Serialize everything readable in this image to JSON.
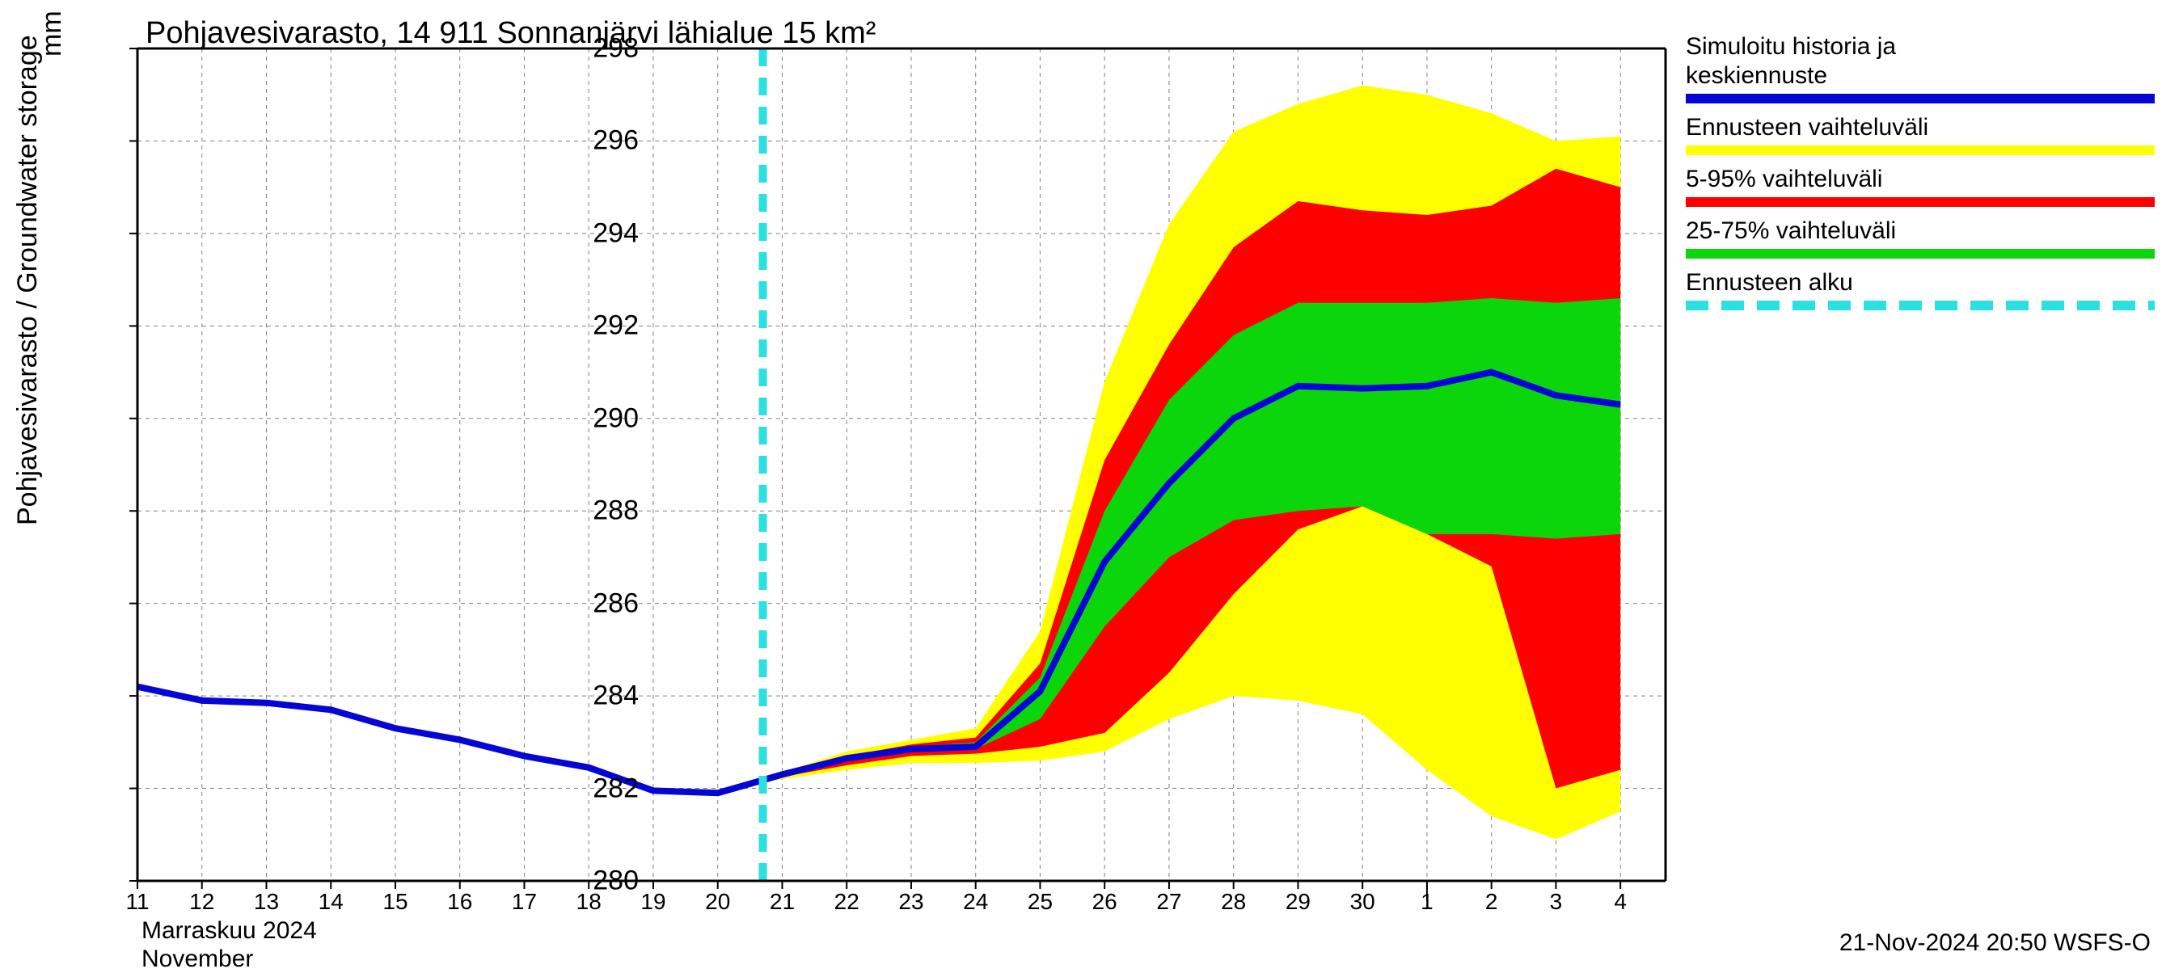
{
  "chart": {
    "title": "Pohjavesivarasto, 14 911 Sonnanjärvi lähialue 15 km²",
    "y_label": "Pohjavesivarasto / Groundwater storage",
    "y_unit": "mm",
    "x_month_fi": "Marraskuu 2024",
    "x_month_en": "November",
    "footer": "21-Nov-2024 20:50 WSFS-O",
    "ylim": [
      280,
      298
    ],
    "ytick_step": 2,
    "yticks": [
      280,
      282,
      284,
      286,
      288,
      290,
      292,
      294,
      296,
      298
    ],
    "x_dates": [
      "11",
      "12",
      "13",
      "14",
      "15",
      "16",
      "17",
      "18",
      "19",
      "20",
      "21",
      "22",
      "23",
      "24",
      "25",
      "26",
      "27",
      "28",
      "29",
      "30",
      "1",
      "2",
      "3",
      "4"
    ],
    "x_positions": [
      0,
      1,
      2,
      3,
      4,
      5,
      6,
      7,
      8,
      9,
      10,
      11,
      12,
      13,
      14,
      15,
      16,
      17,
      18,
      19,
      20,
      21,
      22,
      23
    ],
    "x_count": 24,
    "forecast_start_x": 9.7,
    "month_boundary_x": 20,
    "blue_line": [
      284.2,
      283.9,
      283.85,
      283.7,
      283.3,
      283.05,
      282.7,
      282.45,
      281.95,
      281.9,
      282.3,
      282.65,
      282.85,
      282.9,
      284.1,
      286.9,
      288.6,
      290.0,
      290.7,
      290.65,
      290.7,
      291.0,
      290.5,
      290.3
    ],
    "yellow_upper": [
      284.2,
      283.9,
      283.85,
      283.7,
      283.3,
      283.05,
      282.7,
      282.45,
      281.95,
      281.9,
      282.35,
      282.8,
      283.05,
      283.3,
      285.4,
      290.8,
      294.2,
      296.2,
      296.8,
      297.2,
      297.0,
      296.6,
      296.0,
      296.1
    ],
    "yellow_lower": [
      284.2,
      283.9,
      283.85,
      283.7,
      283.3,
      283.05,
      282.7,
      282.45,
      281.95,
      281.9,
      282.2,
      282.4,
      282.55,
      282.55,
      282.6,
      282.8,
      283.5,
      284.0,
      283.9,
      283.6,
      282.4,
      281.4,
      280.9,
      281.5
    ],
    "red_upper": [
      284.2,
      283.9,
      283.85,
      283.7,
      283.3,
      283.05,
      282.7,
      282.45,
      281.95,
      281.9,
      282.3,
      282.7,
      282.95,
      283.1,
      284.7,
      289.1,
      291.6,
      293.7,
      294.7,
      294.5,
      294.4,
      294.6,
      295.4,
      295.0
    ],
    "red_lower": [
      284.2,
      283.9,
      283.85,
      283.7,
      283.3,
      283.05,
      282.7,
      282.45,
      281.95,
      281.9,
      282.25,
      282.5,
      282.7,
      282.75,
      282.9,
      283.2,
      284.5,
      286.2,
      287.6,
      288.1,
      287.5,
      286.8,
      282.0,
      282.4
    ],
    "green_upper": [
      284.2,
      283.9,
      283.85,
      283.7,
      283.3,
      283.05,
      282.7,
      282.45,
      281.95,
      281.9,
      282.3,
      282.68,
      282.9,
      283.0,
      284.4,
      288.0,
      290.4,
      291.8,
      292.5,
      292.5,
      292.5,
      292.6,
      292.5,
      292.6
    ],
    "green_lower": [
      284.2,
      283.9,
      283.85,
      283.7,
      283.3,
      283.05,
      282.7,
      282.45,
      281.95,
      281.9,
      282.28,
      282.58,
      282.8,
      282.85,
      283.5,
      285.5,
      287.0,
      287.8,
      288.0,
      288.1,
      287.5,
      287.5,
      287.4,
      287.5
    ],
    "colors": {
      "blue": "#0505d6",
      "yellow": "#ffff00",
      "red": "#ff0000",
      "green": "#0ad60a",
      "cyan": "#2ae0e0",
      "grid": "#808080",
      "axis": "#000000",
      "bg": "#ffffff"
    },
    "line_widths": {
      "blue": 8,
      "axis": 3
    },
    "title_fontsize": 38,
    "label_fontsize": 34,
    "tick_fontsize": 30
  },
  "legend": {
    "items": [
      {
        "label1": "Simuloitu historia ja",
        "label2": "keskiennuste",
        "style": "blue"
      },
      {
        "label1": "Ennusteen vaihteluväli",
        "label2": null,
        "style": "yellow"
      },
      {
        "label1": "5-95% vaihteluväli",
        "label2": null,
        "style": "red"
      },
      {
        "label1": "25-75% vaihteluväli",
        "label2": null,
        "style": "green"
      },
      {
        "label1": "Ennusteen alku",
        "label2": null,
        "style": "cyan-dash"
      }
    ]
  }
}
